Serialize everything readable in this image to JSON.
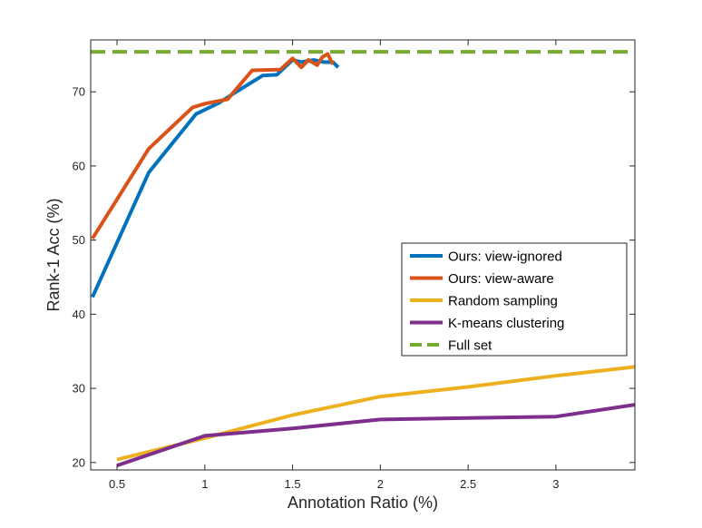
{
  "chart_data": {
    "type": "line",
    "title": "",
    "xlabel": "Annotation Ratio (%)",
    "ylabel": "Rank-1 Acc (%)",
    "xlim": [
      0.35,
      3.45
    ],
    "ylim": [
      19,
      77
    ],
    "xticks": [
      0.5,
      1,
      1.5,
      2,
      2.5,
      3
    ],
    "xtick_labels": [
      "0.5",
      "1",
      "1.5",
      "2",
      "2.5",
      "3"
    ],
    "yticks": [
      20,
      30,
      40,
      50,
      60,
      70
    ],
    "ytick_labels": [
      "20",
      "30",
      "40",
      "50",
      "60",
      "70"
    ],
    "grid": false,
    "legend_position": "center-right",
    "series": [
      {
        "name": "Ours: view-ignored",
        "color": "#0072BD",
        "dash": "solid",
        "x": [
          0.36,
          0.68,
          0.95,
          1.08,
          1.18,
          1.33,
          1.41,
          1.5,
          1.55,
          1.62,
          1.68,
          1.73,
          1.76
        ],
        "y": [
          42.3,
          59.1,
          67.0,
          68.5,
          70.0,
          72.2,
          72.3,
          74.3,
          74.0,
          74.3,
          74.0,
          74.0,
          73.3
        ]
      },
      {
        "name": "Ours: view-aware",
        "color": "#D95319",
        "dash": "solid",
        "x": [
          0.36,
          0.68,
          0.93,
          1.0,
          1.13,
          1.27,
          1.43,
          1.5,
          1.55,
          1.59,
          1.64,
          1.67,
          1.7,
          1.73
        ],
        "y": [
          50.2,
          62.3,
          67.9,
          68.4,
          69.0,
          72.9,
          73.0,
          74.5,
          73.3,
          74.3,
          73.6,
          74.7,
          75.1,
          73.7
        ]
      },
      {
        "name": "Random sampling",
        "color": "#EDB120",
        "dash": "solid",
        "x": [
          0.5,
          1.0,
          1.5,
          2.0,
          2.5,
          3.0,
          3.45
        ],
        "y": [
          20.4,
          23.3,
          26.4,
          28.9,
          30.2,
          31.7,
          32.9
        ]
      },
      {
        "name": "K-means clustering",
        "color": "#7E2F8E",
        "dash": "solid",
        "x": [
          0.5,
          1.0,
          1.5,
          2.0,
          2.5,
          3.0,
          3.45
        ],
        "y": [
          19.6,
          23.6,
          24.6,
          25.8,
          26.0,
          26.2,
          27.8
        ]
      },
      {
        "name": "Full set",
        "color": "#77AC30",
        "dash": "dashed",
        "x": [
          0.35,
          3.45
        ],
        "y": [
          75.4,
          75.4
        ]
      }
    ]
  }
}
